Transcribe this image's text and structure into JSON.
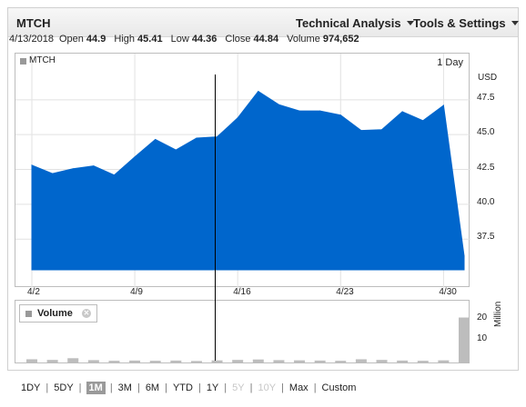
{
  "header": {
    "ticker": "MTCH",
    "menus": [
      {
        "label": "Technical Analysis"
      },
      {
        "label": "Tools & Settings"
      }
    ]
  },
  "quote": {
    "date": "4/13/2018",
    "open_label": "Open",
    "open": "44.9",
    "high_label": "High",
    "high": "45.41",
    "low_label": "Low",
    "low": "44.36",
    "close_label": "Close",
    "close": "44.84",
    "volume_label": "Volume",
    "volume": "974,652"
  },
  "chart_data": {
    "type": "area",
    "legend": "MTCH",
    "period": "1 Day",
    "currency": "USD",
    "y_ticks": [
      "47.5",
      "45.0",
      "42.5",
      "40.0",
      "37.5"
    ],
    "y_tick_values": [
      47.5,
      45.0,
      42.5,
      40.0,
      37.5
    ],
    "ylim": [
      35.3,
      49.9
    ],
    "x_labels": [
      "4/2",
      "4/9",
      "4/16",
      "4/23",
      "4/30"
    ],
    "x_label_index": [
      0,
      5,
      10,
      15,
      20
    ],
    "values": [
      42.8,
      42.2,
      42.55,
      42.75,
      42.1,
      43.4,
      44.65,
      43.9,
      44.75,
      44.84,
      46.2,
      48.1,
      47.15,
      46.7,
      46.7,
      46.4,
      45.3,
      45.35,
      46.65,
      46.0,
      47.1,
      36.3
    ],
    "color": "#0066cc",
    "grid": true
  },
  "volume_chart": {
    "legend": "Volume",
    "unit": "Million",
    "y_ticks": [
      "20",
      "10"
    ],
    "y_tick_values": [
      20,
      10
    ],
    "ylim": [
      0,
      28
    ],
    "values": [
      1.5,
      1.2,
      2.0,
      1.1,
      0.8,
      0.9,
      0.8,
      0.9,
      0.7,
      0.98,
      1.2,
      1.4,
      1.1,
      1.0,
      0.9,
      0.8,
      1.5,
      1.2,
      0.9,
      0.8,
      1.0,
      21.0
    ],
    "color": "#bdbdbd"
  },
  "ranges": [
    {
      "label": "1DY",
      "state": "normal"
    },
    {
      "label": "5DY",
      "state": "normal"
    },
    {
      "label": "1M",
      "state": "active"
    },
    {
      "label": "3M",
      "state": "normal"
    },
    {
      "label": "6M",
      "state": "normal"
    },
    {
      "label": "YTD",
      "state": "normal"
    },
    {
      "label": "1Y",
      "state": "normal"
    },
    {
      "label": "5Y",
      "state": "disabled"
    },
    {
      "label": "10Y",
      "state": "disabled"
    },
    {
      "label": "Max",
      "state": "normal"
    },
    {
      "label": "Custom",
      "state": "normal"
    }
  ]
}
